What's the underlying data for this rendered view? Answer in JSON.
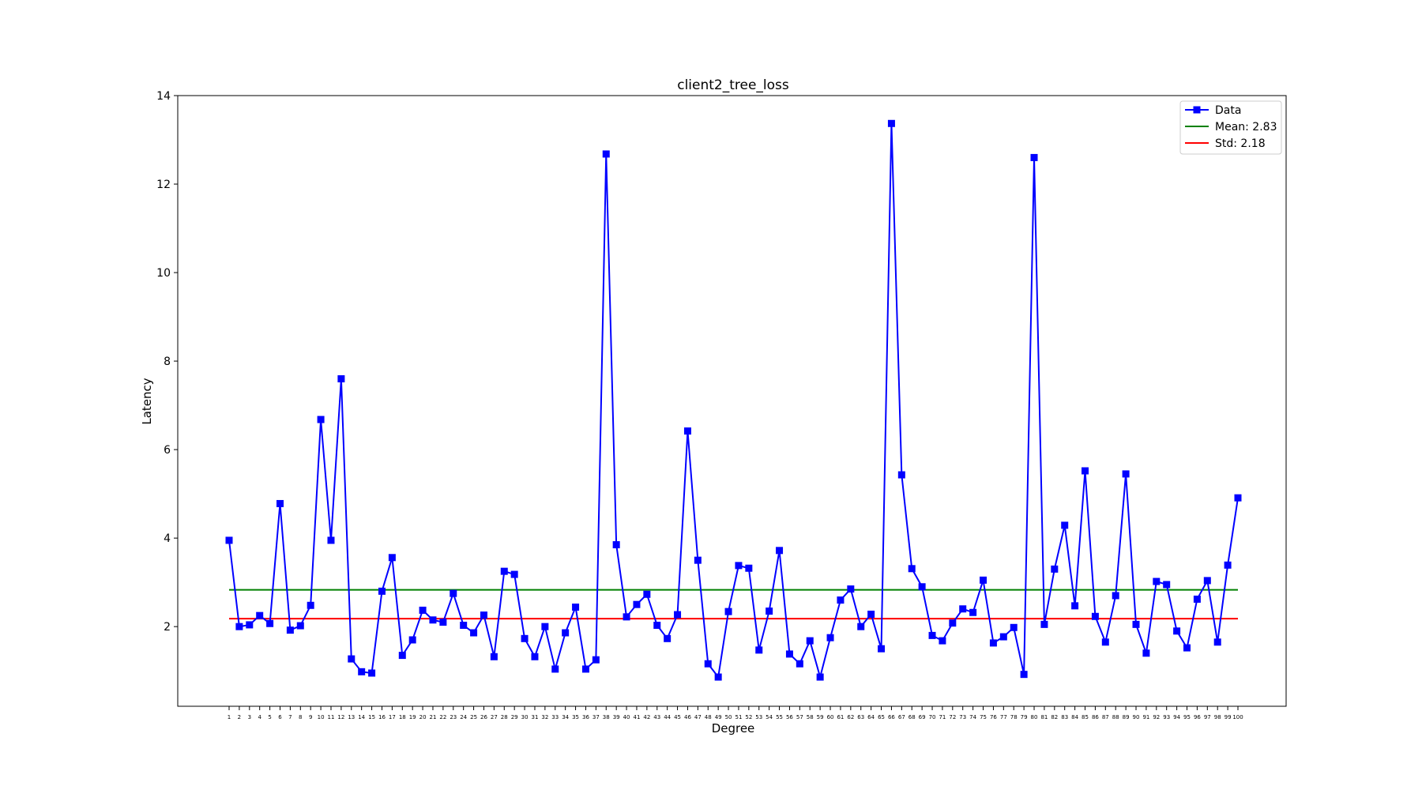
{
  "chart_data": {
    "type": "line",
    "title": "client2_tree_loss",
    "xlabel": "Degree",
    "ylabel": "Latency",
    "ylim": [
      0.2,
      14
    ],
    "yticks": [
      2,
      4,
      6,
      8,
      10,
      12,
      14
    ],
    "grid": false,
    "legend_position": "top-right",
    "categories": [
      "1",
      "2",
      "3",
      "4",
      "5",
      "6",
      "7",
      "8",
      "9",
      "10",
      "11",
      "12",
      "13",
      "14",
      "15",
      "16",
      "17",
      "18",
      "19",
      "20",
      "21",
      "22",
      "23",
      "24",
      "25",
      "26",
      "27",
      "28",
      "29",
      "30",
      "31",
      "32",
      "33",
      "34",
      "35",
      "36",
      "37",
      "38",
      "39",
      "40",
      "41",
      "42",
      "43",
      "44",
      "45",
      "46",
      "47",
      "48",
      "49",
      "50",
      "51",
      "52",
      "53",
      "54",
      "55",
      "56",
      "57",
      "58",
      "59",
      "60",
      "61",
      "62",
      "63",
      "64",
      "65",
      "66",
      "67",
      "68",
      "69",
      "70",
      "71",
      "72",
      "73",
      "74",
      "75",
      "76",
      "77",
      "78",
      "79",
      "80",
      "81",
      "82",
      "83",
      "84",
      "85",
      "86",
      "87",
      "88",
      "89",
      "90",
      "91",
      "92",
      "93",
      "94",
      "95",
      "96",
      "97",
      "98",
      "99",
      "100"
    ],
    "series": [
      {
        "name": "Data",
        "color": "#0000ff",
        "marker": "square",
        "values": [
          3.95,
          2.0,
          2.04,
          2.25,
          2.07,
          4.78,
          1.92,
          2.02,
          2.48,
          6.68,
          3.95,
          7.6,
          1.27,
          0.98,
          0.95,
          2.8,
          3.56,
          1.35,
          1.7,
          2.37,
          2.15,
          2.1,
          2.75,
          2.03,
          1.86,
          2.26,
          1.32,
          3.25,
          3.18,
          1.73,
          1.32,
          2.0,
          1.04,
          1.86,
          2.44,
          1.04,
          1.25,
          12.68,
          3.85,
          2.22,
          2.5,
          2.73,
          2.03,
          1.73,
          2.27,
          6.42,
          3.5,
          1.16,
          0.86,
          2.34,
          3.38,
          3.32,
          1.47,
          2.35,
          3.72,
          1.38,
          1.16,
          1.68,
          0.86,
          1.75,
          2.6,
          2.85,
          2.0,
          2.28,
          1.5,
          13.37,
          5.43,
          3.31,
          2.9,
          1.8,
          1.68,
          2.08,
          2.4,
          2.32,
          3.05,
          1.63,
          1.77,
          1.98,
          0.92,
          12.6,
          2.05,
          3.3,
          4.29,
          2.47,
          5.52,
          2.23,
          1.65,
          2.7,
          5.45,
          2.05,
          1.4,
          3.02,
          2.95,
          1.9,
          1.52,
          2.62,
          3.04,
          1.65,
          3.39,
          4.91
        ]
      }
    ],
    "reference_lines": [
      {
        "name": "Mean: 2.83",
        "value": 2.83,
        "color": "#008000"
      },
      {
        "name": "Std: 2.18",
        "value": 2.18,
        "color": "#ff0000"
      }
    ]
  }
}
